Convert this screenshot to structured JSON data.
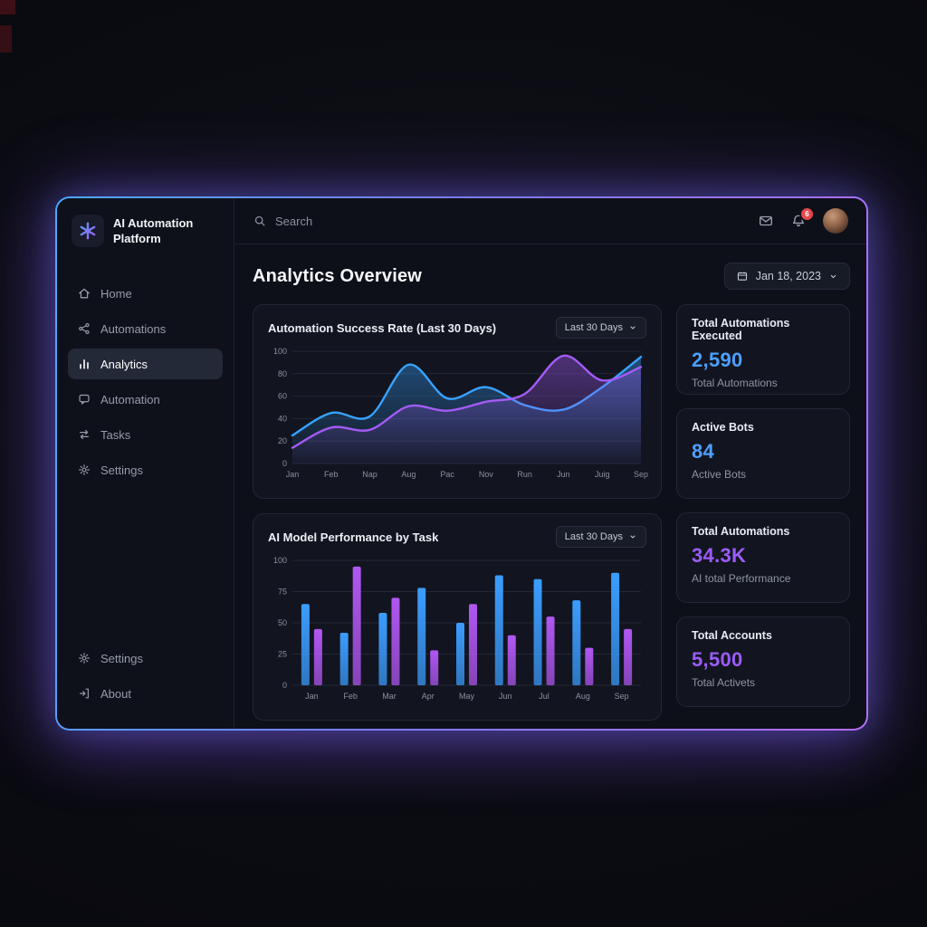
{
  "app": {
    "title_line1": "AI Automation",
    "title_line2": "Platform"
  },
  "topbar": {
    "search_placeholder": "Search",
    "notification_count": "6"
  },
  "sidebar": {
    "items": [
      {
        "label": "Home"
      },
      {
        "label": "Automations"
      },
      {
        "label": "Analytics"
      },
      {
        "label": "Automation"
      },
      {
        "label": "Tasks"
      },
      {
        "label": "Settings"
      }
    ],
    "footer_items": [
      {
        "label": "Settings"
      },
      {
        "label": "About"
      }
    ]
  },
  "page": {
    "title": "Analytics Overview",
    "date_label": "Jan 18, 2023"
  },
  "cards": {
    "line_card": {
      "title": "Automation Success Rate (Last 30 Days)",
      "range_label": "Last 30 Days"
    },
    "bar_card": {
      "title": "AI Model Performance by Task",
      "range_label": "Last 30 Days"
    }
  },
  "stats": [
    {
      "title": "Total Automations Executed",
      "value": "2,590",
      "sub": "Total Automations",
      "color": "#4d9fff"
    },
    {
      "title": "Active Bots",
      "value": "84",
      "sub": "Active Bots",
      "color": "#4d9fff"
    },
    {
      "title": "Total Automations",
      "value": "34.3K",
      "sub": "AI total Performance",
      "color": "#9b5cf7"
    },
    {
      "title": "Total Accounts",
      "value": "5,500",
      "sub": "Total Activets",
      "color": "#9b5cf7"
    }
  ],
  "chart_data": [
    {
      "type": "line",
      "title": "Automation Success Rate (Last 30 Days)",
      "x": [
        "Jan",
        "Feb",
        "Nap",
        "Aug",
        "Pac",
        "Nov",
        "Run",
        "Jun",
        "Juig",
        "Sep"
      ],
      "series": [
        {
          "name": "success-rate-blue",
          "color": "#38a2ff",
          "values": [
            25,
            45,
            42,
            88,
            58,
            68,
            52,
            48,
            68,
            95
          ]
        },
        {
          "name": "success-rate-purple",
          "color": "#a55bf7",
          "values": [
            14,
            32,
            30,
            51,
            47,
            55,
            62,
            96,
            74,
            86
          ]
        }
      ],
      "ylim": [
        0,
        100
      ],
      "yticks": [
        0,
        20,
        40,
        60,
        80,
        100
      ],
      "grid": true,
      "legend": "none"
    },
    {
      "type": "bar",
      "title": "AI Model Performance by Task",
      "categories": [
        "Jan",
        "Feb",
        "Mar",
        "Apr",
        "May",
        "Jun",
        "Jul",
        "Aug",
        "Sep"
      ],
      "series": [
        {
          "name": "performance-blue",
          "color": "#3b9dff",
          "values": [
            65,
            42,
            58,
            78,
            50,
            88,
            85,
            68,
            90
          ]
        },
        {
          "name": "performance-purple",
          "color": "#b157f2",
          "values": [
            45,
            95,
            70,
            28,
            65,
            40,
            55,
            30,
            45
          ]
        }
      ],
      "ylim": [
        0,
        100
      ],
      "yticks": [
        0,
        25,
        50,
        75,
        100
      ],
      "grid": true,
      "legend": "none"
    }
  ],
  "colors": {
    "accent_blue": "#3b9dff",
    "accent_purple": "#a55bf7",
    "border_gradient_start": "#4aa8ff",
    "border_gradient_end": "#b56cf8"
  }
}
